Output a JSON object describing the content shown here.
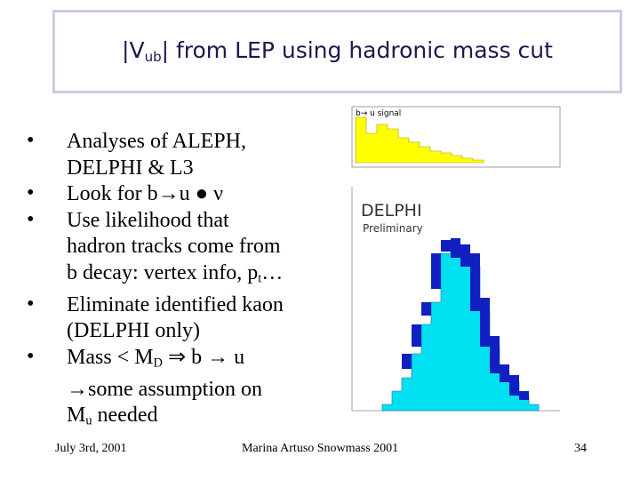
{
  "header": {
    "title": [
      {
        "text": "|V"
      },
      {
        "sub": "ub"
      },
      {
        "text": "| from LEP using hadronic mass cut"
      }
    ]
  },
  "bullets": [
    [
      [
        {
          "text": "Analyses of ALEPH,"
        }
      ],
      [
        {
          "text": "DELPHI & L3"
        }
      ]
    ],
    [
      [
        {
          "text": "Look for b→u ● ν"
        }
      ]
    ],
    [
      [
        {
          "text": "Use likelihood that"
        }
      ],
      [
        {
          "text": "hadron tracks come from"
        }
      ],
      [
        {
          "text": "b decay: vertex info, p"
        },
        {
          "sub": "t"
        },
        {
          "text": "…"
        }
      ]
    ],
    [
      [
        {
          "text": "Eliminate identified kaon"
        }
      ],
      [
        {
          "text": "(DELPHI only)"
        }
      ]
    ],
    [
      [
        {
          "text": "Mass < M"
        },
        {
          "sub": "D"
        },
        {
          "text": " ⇒ b → u"
        }
      ],
      [
        {
          "text": "→some assumption on"
        }
      ],
      [
        {
          "text": "M"
        },
        {
          "sub": "u"
        },
        {
          "text": " needed"
        }
      ]
    ]
  ],
  "figure": {
    "top_label": "b→ u signal",
    "experiment": "DELPHI",
    "status": "Preliminary"
  },
  "footer": {
    "date": "July 3rd, 2001",
    "author": "Marina Artuso Snowmass 2001",
    "page": "34"
  }
}
